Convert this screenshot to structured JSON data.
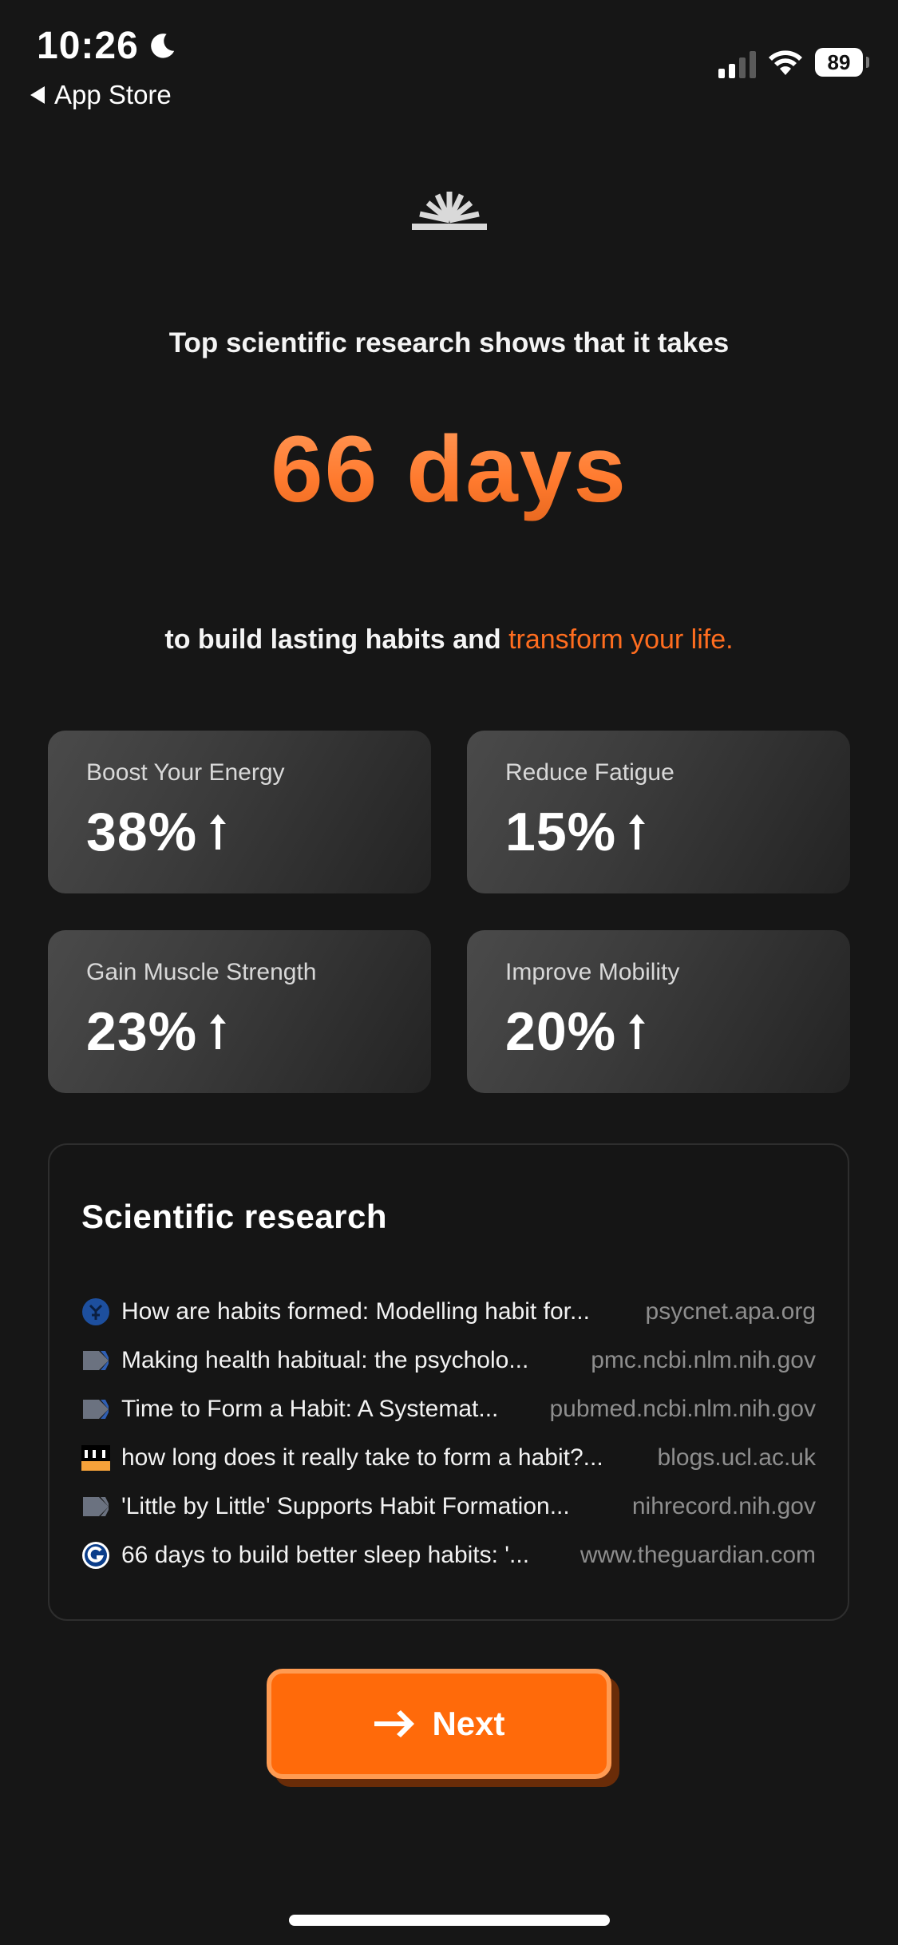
{
  "status_bar": {
    "time": "10:26",
    "back_label": "App Store",
    "battery": "89"
  },
  "intro": {
    "line": "Top scientific research shows that it takes",
    "highlight": "66 days",
    "sub_prefix": "to build lasting habits and",
    "sub_accent": "transform your life."
  },
  "stats": [
    {
      "label": "Boost Your Energy",
      "value": "38%"
    },
    {
      "label": "Reduce Fatigue",
      "value": "15%"
    },
    {
      "label": "Gain Muscle Strength",
      "value": "23%"
    },
    {
      "label": "Improve Mobility",
      "value": "20%"
    }
  ],
  "research": {
    "title": "Scientific research",
    "refs": [
      {
        "title": "How are habits formed: Modelling habit for...",
        "source": "psycnet.apa.org",
        "icon": "apa-icon"
      },
      {
        "title": "Making health habitual: the psycholo...",
        "source": "pmc.ncbi.nlm.nih.gov",
        "icon": "nih-icon"
      },
      {
        "title": "Time to Form a Habit: A Systemat...",
        "source": "pubmed.ncbi.nlm.nih.gov",
        "icon": "nih-icon"
      },
      {
        "title": "how long does it really take to form a habit?...",
        "source": "blogs.ucl.ac.uk",
        "icon": "ucl-icon"
      },
      {
        "title": "'Little by Little' Supports Habit Formation...",
        "source": "nihrecord.nih.gov",
        "icon": "nih-icon"
      },
      {
        "title": "66 days to build better sleep habits: '...",
        "source": "www.theguardian.com",
        "icon": "guardian-icon"
      }
    ]
  },
  "button": {
    "next_label": "Next"
  },
  "colors": {
    "accent": "#ff6d1f",
    "button": "#ff6a0a",
    "background": "#161616"
  }
}
